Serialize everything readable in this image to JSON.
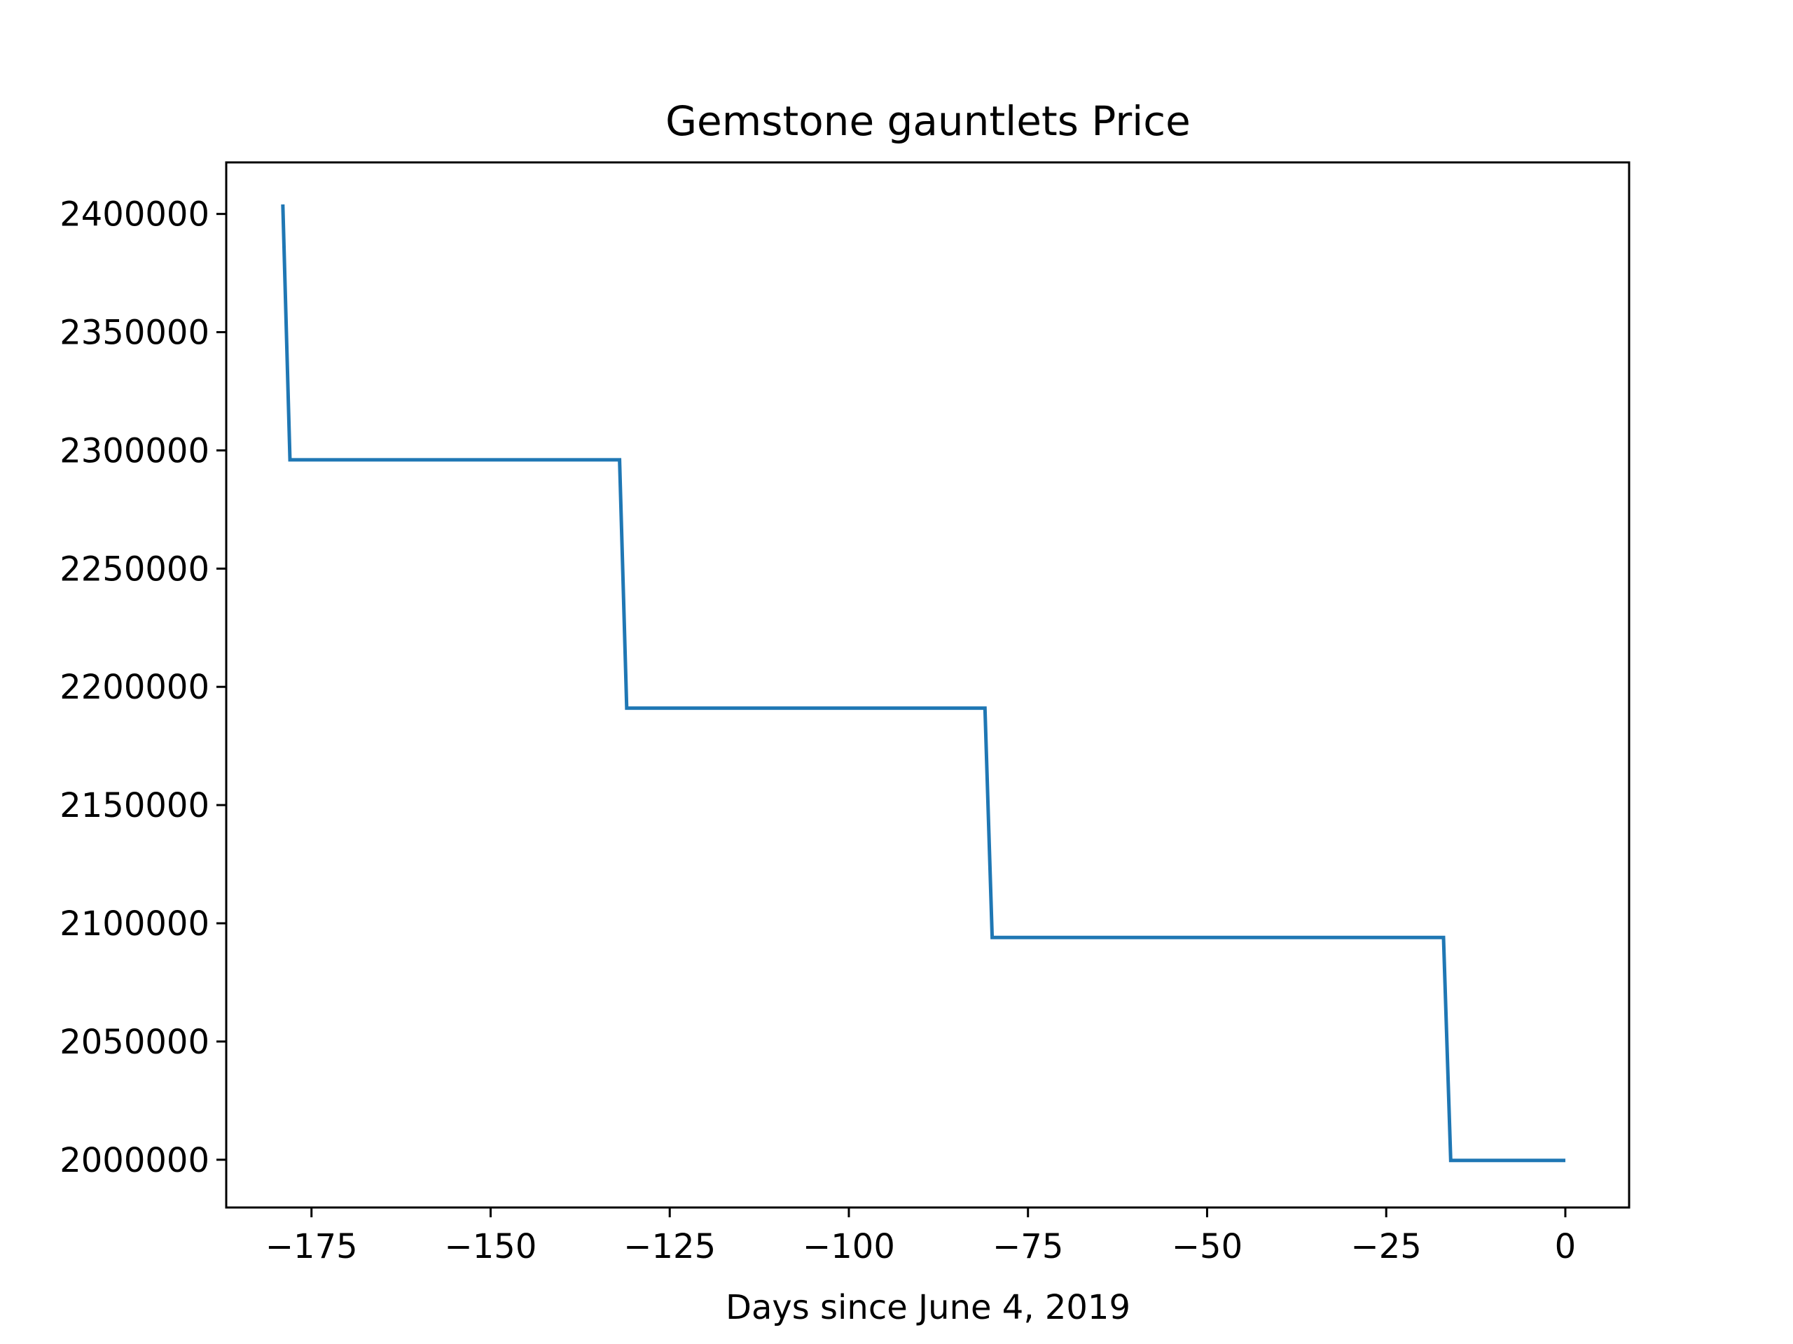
{
  "chart_data": {
    "type": "line",
    "title": "Gemstone gauntlets Price",
    "xlabel": "Days since June 4, 2019",
    "ylabel": "",
    "xlim": [
      -186.9,
      8.9
    ],
    "ylim": [
      1979800,
      2421800
    ],
    "xticks": [
      -175,
      -150,
      -125,
      -100,
      -75,
      -50,
      -25,
      0
    ],
    "xtick_labels": [
      "−175",
      "−150",
      "−125",
      "−100",
      "−75",
      "−50",
      "−25",
      "0"
    ],
    "yticks": [
      2000000,
      2050000,
      2100000,
      2150000,
      2200000,
      2250000,
      2300000,
      2350000,
      2400000
    ],
    "ytick_labels": [
      "2000000",
      "2050000",
      "2100000",
      "2150000",
      "2200000",
      "2250000",
      "2300000",
      "2350000",
      "2400000"
    ],
    "grid": false,
    "legend": "none",
    "series": [
      {
        "color": "#1f77b4",
        "x": [
          -179,
          -178,
          -132,
          -131,
          -81,
          -80,
          -17,
          -16,
          0
        ],
        "y": [
          2404000,
          2296000,
          2296000,
          2191000,
          2191000,
          2094000,
          2094000,
          1999700,
          1999700
        ]
      }
    ]
  }
}
